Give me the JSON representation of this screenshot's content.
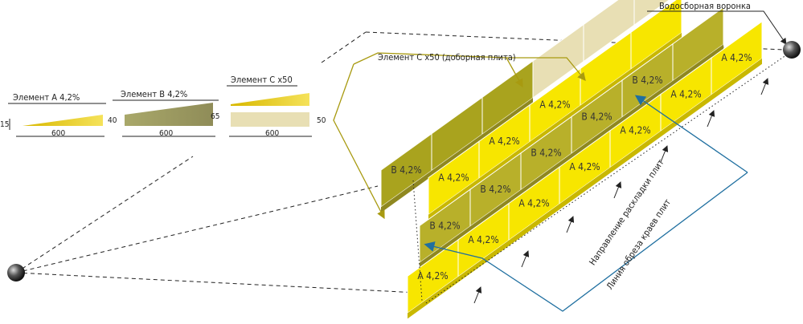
{
  "callouts": {
    "funnel": "Водосборная воронка",
    "element_c_note": "Элемент С х50 (доборная плита)",
    "laying_direction": "Направление раскладки плит",
    "cut_line": "Линия обреза краев плит"
  },
  "elements": [
    {
      "label": "Элемент А 4,2%",
      "dims": [
        "15",
        "600"
      ]
    },
    {
      "label": "Элемент В 4,2%",
      "dims": [
        "40",
        "600",
        "65"
      ]
    },
    {
      "label": "Элемент С х50",
      "dims": [
        "600",
        "50"
      ]
    }
  ],
  "rows": [
    [
      "A 4,2%",
      "A 4,2%",
      "A 4,2%",
      "A 4,2%",
      "A 4,2%",
      "A 4,2%",
      "A 4,2%"
    ],
    [
      "B 4,2%",
      "B 4,2%",
      "B 4,2%",
      "B 4,2%",
      "B 4,2%"
    ],
    [
      "A 4,2%",
      "A 4,2%",
      "A 4,2%"
    ],
    [
      "B 4,2%"
    ]
  ]
}
